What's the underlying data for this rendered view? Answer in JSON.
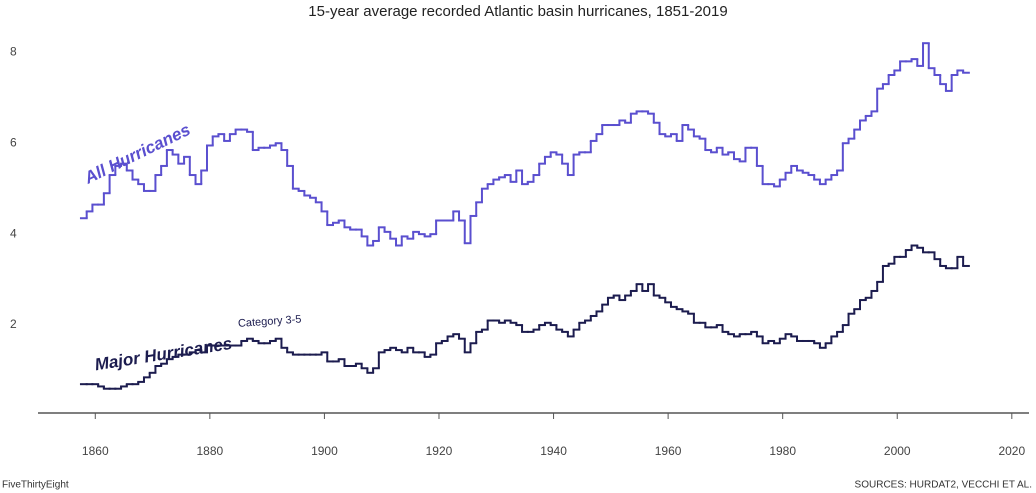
{
  "chart_data": {
    "type": "step",
    "title": "15-year average recorded Atlantic basin hurricanes, 1851-2019",
    "annotations": [
      "All Hurricanes",
      "Major Hurricanes",
      "Category 3-5"
    ],
    "brand": "FiveThirtyEight",
    "source": "SOURCES: HURDAT2, VECCHI ET AL.",
    "x": [
      1858,
      1859,
      1860,
      1861,
      1862,
      1863,
      1864,
      1865,
      1866,
      1867,
      1868,
      1869,
      1870,
      1871,
      1872,
      1873,
      1874,
      1875,
      1876,
      1877,
      1878,
      1879,
      1880,
      1881,
      1882,
      1883,
      1884,
      1885,
      1886,
      1887,
      1888,
      1889,
      1890,
      1891,
      1892,
      1893,
      1894,
      1895,
      1896,
      1897,
      1898,
      1899,
      1900,
      1901,
      1902,
      1903,
      1904,
      1905,
      1906,
      1907,
      1908,
      1909,
      1910,
      1911,
      1912,
      1913,
      1914,
      1915,
      1916,
      1917,
      1918,
      1919,
      1920,
      1921,
      1922,
      1923,
      1924,
      1925,
      1926,
      1927,
      1928,
      1929,
      1930,
      1931,
      1932,
      1933,
      1934,
      1935,
      1936,
      1937,
      1938,
      1939,
      1940,
      1941,
      1942,
      1943,
      1944,
      1945,
      1946,
      1947,
      1948,
      1949,
      1950,
      1951,
      1952,
      1953,
      1954,
      1955,
      1956,
      1957,
      1958,
      1959,
      1960,
      1961,
      1962,
      1963,
      1964,
      1965,
      1966,
      1967,
      1968,
      1969,
      1970,
      1971,
      1972,
      1973,
      1974,
      1975,
      1976,
      1977,
      1978,
      1979,
      1980,
      1981,
      1982,
      1983,
      1984,
      1985,
      1986,
      1987,
      1988,
      1989,
      1990,
      1991,
      1992,
      1993,
      1994,
      1995,
      1996,
      1997,
      1998,
      1999,
      2000,
      2001,
      2002,
      2003,
      2004,
      2005,
      2006,
      2007,
      2008,
      2009,
      2010,
      2011,
      2012
    ],
    "series": [
      {
        "name": "All Hurricanes",
        "color": "#5a4fcf",
        "values": [
          4.35,
          4.5,
          4.65,
          4.65,
          4.9,
          5.3,
          5.5,
          5.55,
          5.4,
          5.2,
          5.1,
          4.95,
          4.95,
          5.3,
          5.5,
          5.85,
          5.75,
          5.55,
          5.7,
          5.3,
          5.1,
          5.4,
          5.95,
          6.15,
          6.2,
          6.05,
          6.2,
          6.3,
          6.3,
          6.25,
          5.85,
          5.9,
          5.9,
          5.95,
          6.0,
          5.85,
          5.5,
          5.0,
          4.95,
          4.85,
          4.8,
          4.7,
          4.5,
          4.2,
          4.25,
          4.3,
          4.15,
          4.1,
          4.1,
          3.95,
          3.75,
          3.85,
          4.15,
          4.05,
          3.9,
          3.75,
          3.95,
          3.9,
          4.05,
          4.0,
          3.95,
          4.0,
          4.3,
          4.3,
          4.3,
          4.5,
          4.3,
          3.8,
          4.4,
          4.7,
          5.0,
          5.1,
          5.2,
          5.25,
          5.3,
          5.15,
          5.4,
          5.1,
          5.15,
          5.3,
          5.55,
          5.7,
          5.8,
          5.75,
          5.55,
          5.3,
          5.75,
          5.8,
          5.8,
          6.05,
          6.2,
          6.4,
          6.4,
          6.4,
          6.5,
          6.45,
          6.65,
          6.7,
          6.7,
          6.65,
          6.45,
          6.2,
          6.15,
          6.2,
          6.05,
          6.4,
          6.3,
          6.15,
          6.1,
          5.85,
          5.8,
          5.9,
          5.75,
          5.8,
          5.65,
          5.6,
          5.9,
          5.9,
          5.5,
          5.1,
          5.1,
          5.05,
          5.2,
          5.35,
          5.5,
          5.4,
          5.35,
          5.3,
          5.2,
          5.1,
          5.2,
          5.3,
          5.4,
          6.0,
          6.1,
          6.3,
          6.5,
          6.6,
          6.7,
          7.2,
          7.3,
          7.5,
          7.6,
          7.8,
          7.8,
          7.85,
          7.7,
          8.2,
          7.65,
          7.5,
          7.3,
          7.15,
          7.5,
          7.6,
          7.55
        ]
      },
      {
        "name": "Major Hurricanes",
        "color": "#1c1c4f",
        "values": [
          0.7,
          0.7,
          0.7,
          0.65,
          0.6,
          0.6,
          0.6,
          0.65,
          0.7,
          0.7,
          0.75,
          0.85,
          0.95,
          1.1,
          1.15,
          1.25,
          1.3,
          1.35,
          1.35,
          1.4,
          1.45,
          1.4,
          1.55,
          1.55,
          1.55,
          1.55,
          1.55,
          1.55,
          1.65,
          1.7,
          1.65,
          1.6,
          1.6,
          1.65,
          1.7,
          1.5,
          1.4,
          1.35,
          1.35,
          1.35,
          1.35,
          1.35,
          1.4,
          1.2,
          1.2,
          1.25,
          1.1,
          1.1,
          1.15,
          1.05,
          0.95,
          1.05,
          1.4,
          1.45,
          1.5,
          1.45,
          1.4,
          1.5,
          1.4,
          1.4,
          1.3,
          1.35,
          1.6,
          1.65,
          1.75,
          1.8,
          1.7,
          1.4,
          1.6,
          1.85,
          1.9,
          2.1,
          2.1,
          2.05,
          2.1,
          2.05,
          2.0,
          1.85,
          1.85,
          1.9,
          2.0,
          2.05,
          2.0,
          1.9,
          1.85,
          1.75,
          1.9,
          2.05,
          2.1,
          2.2,
          2.3,
          2.45,
          2.6,
          2.65,
          2.55,
          2.65,
          2.75,
          2.9,
          2.75,
          2.9,
          2.65,
          2.6,
          2.5,
          2.4,
          2.35,
          2.3,
          2.25,
          2.05,
          2.05,
          1.95,
          1.95,
          2.0,
          1.85,
          1.8,
          1.75,
          1.8,
          1.8,
          1.85,
          1.75,
          1.6,
          1.65,
          1.6,
          1.7,
          1.8,
          1.75,
          1.65,
          1.65,
          1.65,
          1.6,
          1.5,
          1.6,
          1.75,
          1.85,
          2.0,
          2.25,
          2.35,
          2.55,
          2.6,
          2.75,
          2.95,
          3.3,
          3.35,
          3.5,
          3.5,
          3.65,
          3.75,
          3.7,
          3.6,
          3.6,
          3.45,
          3.3,
          3.25,
          3.25,
          3.5,
          3.3
        ]
      }
    ],
    "xlim": [
      1850,
      2023
    ],
    "xticks": [
      1860,
      1880,
      1900,
      1920,
      1940,
      1960,
      1980,
      2000,
      2020
    ],
    "ylim": [
      0,
      8.6
    ],
    "yticks": [
      2,
      4,
      6,
      8
    ],
    "grid": false
  }
}
